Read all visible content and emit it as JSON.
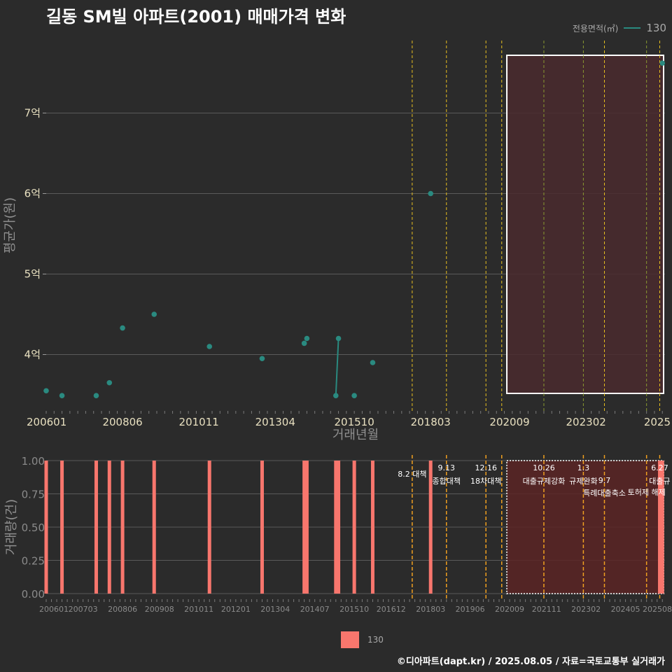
{
  "title": "길동 SM빌 아파트(2001) 매매가격 변화",
  "legend": {
    "title": "전용면적(㎡)",
    "label": "130",
    "line_color": "#2a8a80",
    "bar_color": "#f8766d"
  },
  "footer": "©디아파트(dapt.kr) / 2025.08.05 / 자료=국토교통부 실거래가",
  "colors": {
    "background": "#2b2b2b",
    "grid": "#5a5a5a",
    "point": "#2a8a80",
    "bar": "#f8766d",
    "policy_tighten": "#e8c020",
    "policy_ease": "#8a9a30",
    "highlight_fill": "#4a2a2e"
  },
  "chart_data": [
    {
      "type": "scatter",
      "title": "길동 SM빌 아파트(2001) 매매가격 변화",
      "xlabel": "거래년월",
      "ylabel": "평균가(원)",
      "x_range": [
        "2006-01",
        "2025-08"
      ],
      "ylim": [
        3.3,
        7.9
      ],
      "y_ticks": [
        4,
        5,
        6,
        7
      ],
      "y_tick_labels": [
        "4억",
        "5억",
        "6억",
        "7억"
      ],
      "x_ticks": [
        "2006-01",
        "2008-06",
        "2010-11",
        "2013-04",
        "2015-10",
        "2018-03",
        "2020-09",
        "2023-02",
        "2025-07"
      ],
      "x_tick_labels": [
        "200601",
        "200806",
        "201011",
        "201304",
        "201510",
        "201803",
        "202009",
        "202302",
        "2025"
      ],
      "points": [
        {
          "date": "2006-01",
          "value": 3.55
        },
        {
          "date": "2006-07",
          "value": 3.49
        },
        {
          "date": "2007-08",
          "value": 3.49
        },
        {
          "date": "2008-01",
          "value": 3.65
        },
        {
          "date": "2008-06",
          "value": 4.33
        },
        {
          "date": "2009-06",
          "value": 4.5
        },
        {
          "date": "2011-03",
          "value": 4.1
        },
        {
          "date": "2012-11",
          "value": 3.95
        },
        {
          "date": "2014-03",
          "value": 4.14
        },
        {
          "date": "2014-04",
          "value": 4.2
        },
        {
          "date": "2015-03",
          "value": 3.49
        },
        {
          "date": "2015-04",
          "value": 4.2
        },
        {
          "date": "2015-10",
          "value": 3.49
        },
        {
          "date": "2016-05",
          "value": 3.9
        },
        {
          "date": "2018-03",
          "value": 6.0
        },
        {
          "date": "2025-07",
          "value": 7.62
        }
      ],
      "series_line": [
        {
          "date": "2015-03",
          "value": 3.49
        },
        {
          "date": "2015-04",
          "value": 4.2
        }
      ],
      "policy_lines": [
        {
          "date": "2017-08",
          "kind": "tighten"
        },
        {
          "date": "2018-09",
          "kind": "tighten"
        },
        {
          "date": "2019-12",
          "kind": "tighten"
        },
        {
          "date": "2020-06",
          "kind": "tighten"
        },
        {
          "date": "2021-10",
          "kind": "ease"
        },
        {
          "date": "2023-01",
          "kind": "ease"
        },
        {
          "date": "2023-09",
          "kind": "tighten"
        },
        {
          "date": "2025-01",
          "kind": "ease"
        },
        {
          "date": "2025-06",
          "kind": "tighten"
        }
      ],
      "highlight_range": [
        "2020-09",
        "2025-08"
      ]
    },
    {
      "type": "bar",
      "ylabel": "거래량(건)",
      "ylim": [
        0,
        1
      ],
      "y_ticks": [
        0,
        0.25,
        0.5,
        0.75,
        1
      ],
      "y_tick_labels": [
        "0.00",
        "0.25",
        "0.50",
        "0.75",
        "1.00"
      ],
      "x_ticks": [
        "2006-01",
        "2007-03",
        "2008-06",
        "2009-08",
        "2010-11",
        "2012-01",
        "2013-04",
        "2014-07",
        "2015-10",
        "2016-12",
        "2018-03",
        "2019-06",
        "2020-09",
        "2021-11",
        "2023-02",
        "2024-05",
        "2025-08"
      ],
      "x_tick_labels": [
        "200601",
        "200703",
        "200806",
        "200908",
        "201011",
        "201201",
        "201304",
        "201407",
        "201510",
        "201612",
        "201803",
        "201906",
        "202009",
        "202111",
        "202302",
        "202405",
        "202508"
      ],
      "bars": [
        {
          "date": "2006-01",
          "value": 1
        },
        {
          "date": "2006-07",
          "value": 1
        },
        {
          "date": "2007-08",
          "value": 1
        },
        {
          "date": "2008-01",
          "value": 1
        },
        {
          "date": "2008-06",
          "value": 1
        },
        {
          "date": "2009-06",
          "value": 1
        },
        {
          "date": "2011-03",
          "value": 1
        },
        {
          "date": "2012-11",
          "value": 1
        },
        {
          "date": "2014-03",
          "value": 1
        },
        {
          "date": "2014-04",
          "value": 1
        },
        {
          "date": "2015-03",
          "value": 1
        },
        {
          "date": "2015-04",
          "value": 1
        },
        {
          "date": "2015-10",
          "value": 1
        },
        {
          "date": "2016-05",
          "value": 1
        },
        {
          "date": "2018-03",
          "value": 1
        },
        {
          "date": "2025-06",
          "value": 1
        },
        {
          "date": "2025-07",
          "value": 1
        }
      ],
      "annotations": [
        {
          "date": "2017-08",
          "lines": [
            "8.2 대책"
          ],
          "row": 2
        },
        {
          "date": "2018-09",
          "lines": [
            "9.13",
            "종합대책"
          ],
          "row": 1
        },
        {
          "date": "2019-12",
          "lines": [
            "12.16",
            "18차대책"
          ],
          "row": 1
        },
        {
          "date": "2021-10",
          "lines": [
            "10.26",
            "대출규제강화"
          ],
          "row": 1
        },
        {
          "date": "2023-01",
          "lines": [
            "1.3",
            "규제완화"
          ],
          "row": 1
        },
        {
          "date": "2023-09",
          "lines": [
            "9.7",
            "특례대출축소"
          ],
          "row": 2
        },
        {
          "date": "2025-01",
          "lines": [
            "토허제 해제"
          ],
          "row": 3
        },
        {
          "date": "2025-06",
          "lines": [
            "6.27",
            "대출규"
          ],
          "row": 1
        }
      ]
    }
  ]
}
